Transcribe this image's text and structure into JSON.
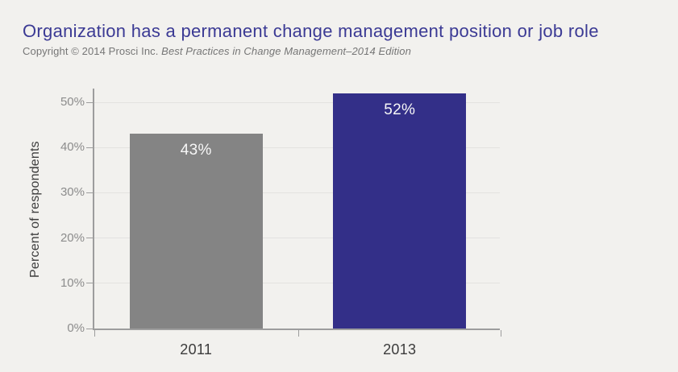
{
  "header": {
    "title": "Organization has a permanent change management position or job role",
    "copyright_prefix": "Copyright © 2014 Prosci Inc. ",
    "copyright_source": "Best Practices in Change Management–2014 Edition"
  },
  "colors": {
    "background": "#f2f1ee",
    "title_text": "#3b3a94",
    "copyright_text": "#767676",
    "axis_line": "#9d9d9d",
    "gridline": "#e3e2e0",
    "tick_label": "#8c8c8c",
    "category_label": "#3c3c3c",
    "y_axis_title": "#3d3d3d",
    "bar_value_label": "#f7f7f7"
  },
  "chart_data": {
    "type": "bar",
    "title": "Organization has a permanent change management position or job role",
    "categories": [
      "2011",
      "2013"
    ],
    "values": [
      43,
      52
    ],
    "value_labels": [
      "43%",
      "52%"
    ],
    "bar_colors": [
      "#848484",
      "#332f88"
    ],
    "xlabel": "",
    "ylabel": "Percent of respondents",
    "ylim": [
      0,
      53.4
    ],
    "yticks": [
      0,
      10,
      20,
      30,
      40,
      50
    ],
    "ytick_labels": [
      "0%",
      "10%",
      "20%",
      "30%",
      "40%",
      "50%"
    ],
    "grid": true,
    "legend_position": "none"
  }
}
